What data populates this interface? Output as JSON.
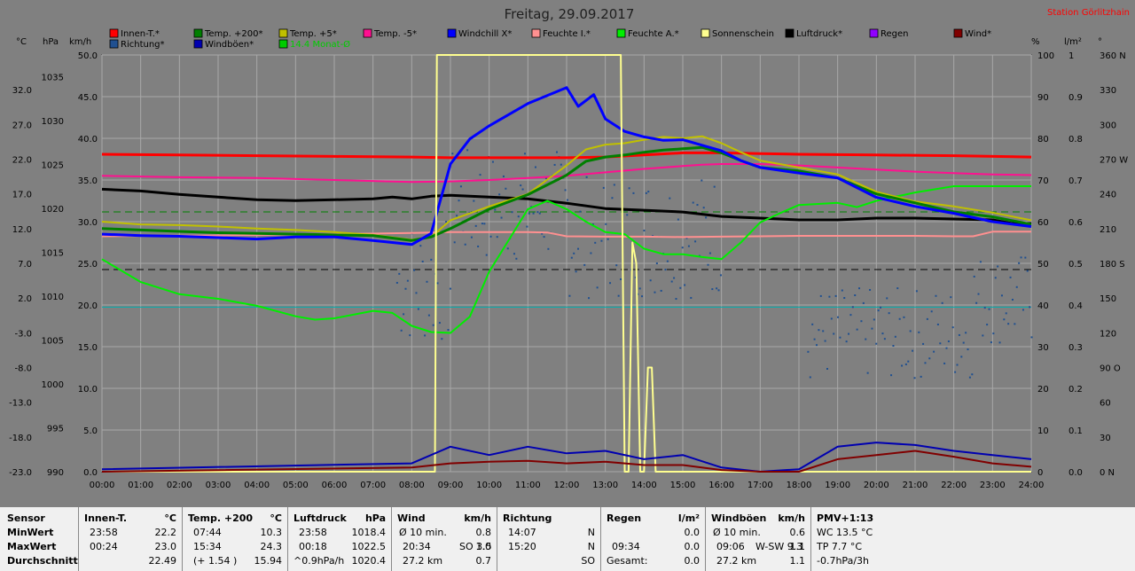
{
  "title": "Freitag, 29.09.2017",
  "station": "Station Görlitzhain",
  "legend": [
    {
      "label": "Innen-T.*",
      "color": "#ff0000"
    },
    {
      "label": "Temp. +200*",
      "color": "#007f00"
    },
    {
      "label": "Temp. +5*",
      "color": "#c0c000"
    },
    {
      "label": "Temp. -5*",
      "color": "#ff1090"
    },
    {
      "label": "Windchill X*",
      "color": "#0000ff"
    },
    {
      "label": "Feuchte I.*",
      "color": "#ff9090"
    },
    {
      "label": "Feuchte A.*",
      "color": "#00ee00"
    },
    {
      "label": "Sonnenschein",
      "color": "#ffff90"
    },
    {
      "label": "Luftdruck*",
      "color": "#000000"
    },
    {
      "label": "Regen",
      "color": "#9000ff"
    },
    {
      "label": "Wind*",
      "color": "#800000"
    },
    {
      "label": "Richtung*",
      "color": "#205090"
    },
    {
      "label": "Windböen*",
      "color": "#0000b0"
    },
    {
      "label": "14.4 Monat-Ø",
      "color": "#00cc00"
    }
  ],
  "axis_units": {
    "temp": "°C",
    "pressure": "hPa",
    "wind": "km/h",
    "humidity": "%",
    "rain": "l/m²",
    "direction": "°"
  },
  "chart_data": {
    "type": "line",
    "x_ticks": [
      "00:00",
      "01:00",
      "02:00",
      "03:00",
      "04:00",
      "05:00",
      "06:00",
      "07:00",
      "08:00",
      "09:00",
      "10:00",
      "11:00",
      "12:00",
      "13:00",
      "14:00",
      "15:00",
      "16:00",
      "17:00",
      "18:00",
      "19:00",
      "20:00",
      "21:00",
      "22:00",
      "23:00",
      "24:00"
    ],
    "xlim": [
      0,
      24
    ],
    "axes": {
      "temp": {
        "ticks": [
          "32.0",
          "27.0",
          "22.0",
          "17.0",
          "12.0",
          "7.0",
          "2.0",
          "-3.0",
          "-8.0",
          "-13.0",
          "-18.0",
          "-23.0"
        ],
        "range": [
          -23,
          37
        ]
      },
      "pressure": {
        "ticks": [
          "1035",
          "1030",
          "1025",
          "1020",
          "1015",
          "1010",
          "1005",
          "1000",
          "995",
          "990"
        ],
        "range": [
          990,
          1037.5
        ]
      },
      "wind": {
        "ticks": [
          "50.0",
          "45.0",
          "40.0",
          "35.0",
          "30.0",
          "25.0",
          "20.0",
          "15.0",
          "10.0",
          "5.0",
          "0.0"
        ],
        "range": [
          0,
          50
        ]
      },
      "humidity": {
        "ticks": [
          "100",
          "90",
          "80",
          "70",
          "60",
          "50",
          "40",
          "30",
          "20",
          "10",
          "0"
        ],
        "range": [
          0,
          100
        ]
      },
      "rain": {
        "ticks": [
          "1",
          "0.9",
          "0.8",
          "0.7",
          "0.6",
          "0.5",
          "0.4",
          "0.3",
          "0.2",
          "0.1",
          "0.0"
        ],
        "range": [
          0,
          1
        ]
      },
      "direction": {
        "ticks": [
          "360 N",
          "330",
          "300",
          "270 W",
          "240",
          "210",
          "180 S",
          "150",
          "120",
          "90 O",
          "60",
          "30",
          "0 N"
        ],
        "range": [
          0,
          360
        ]
      }
    },
    "grid": true,
    "reference_lines": [
      {
        "name": "14.4 Monat-Ø",
        "axis": "temp",
        "y": 14.4,
        "color": "#008000",
        "style": "dashed"
      },
      {
        "axis": "humidity",
        "y": 48.5,
        "color": "#000000",
        "style": "dashed"
      },
      {
        "axis": "humidity",
        "y": 39.5,
        "color": "#00b0b0",
        "style": "solid"
      }
    ],
    "series": [
      {
        "name": "Innen-T.*",
        "axis": "temp",
        "color": "#ff0000",
        "width": 3,
        "x": [
          0,
          2,
          4,
          6,
          8,
          9,
          10,
          12,
          13,
          14,
          15,
          16,
          17,
          18,
          20,
          22,
          24
        ],
        "y": [
          22.7,
          22.6,
          22.5,
          22.4,
          22.3,
          22.2,
          22.2,
          22.2,
          22.3,
          22.6,
          22.9,
          22.9,
          22.8,
          22.7,
          22.6,
          22.5,
          22.3
        ]
      },
      {
        "name": "Temp. -5*",
        "axis": "temp",
        "color": "#ff1090",
        "width": 2,
        "x": [
          0,
          2,
          4,
          6,
          8,
          9,
          10,
          11,
          12,
          13,
          14,
          15,
          15.5,
          16,
          17,
          18,
          19,
          20,
          21,
          22,
          23,
          24
        ],
        "y": [
          19.6,
          19.4,
          19.3,
          19.0,
          18.7,
          18.8,
          19.0,
          19.3,
          19.6,
          20.1,
          20.6,
          21.0,
          21.2,
          21.3,
          21.3,
          21.1,
          20.8,
          20.5,
          20.2,
          20.0,
          19.8,
          19.7
        ]
      },
      {
        "name": "Luftdruck*",
        "axis": "pressure",
        "color": "#000000",
        "width": 3,
        "x": [
          0,
          1,
          2,
          3,
          4,
          5,
          6,
          7,
          7.5,
          8,
          8.5,
          9,
          10,
          11,
          12,
          13,
          14,
          15,
          16,
          17,
          18,
          19,
          20,
          21,
          22,
          23,
          23.5,
          24
        ],
        "y": [
          1022.2,
          1022.0,
          1021.6,
          1021.3,
          1021.0,
          1020.9,
          1021.0,
          1021.1,
          1021.3,
          1021.1,
          1021.4,
          1021.5,
          1021.3,
          1021.1,
          1020.6,
          1020.0,
          1019.8,
          1019.6,
          1019.1,
          1018.9,
          1018.7,
          1018.7,
          1018.9,
          1018.9,
          1018.8,
          1018.7,
          1018.3,
          1018.3
        ]
      },
      {
        "name": "Feuchte I.*",
        "axis": "humidity",
        "color": "#ff9090",
        "width": 2,
        "x": [
          0,
          3,
          6,
          8,
          9,
          10,
          11,
          11.5,
          12,
          13,
          14,
          15,
          16,
          17,
          18,
          19,
          20,
          21,
          22,
          22.5,
          23,
          24
        ],
        "y": [
          56.5,
          56.7,
          57.0,
          57.3,
          57.5,
          57.5,
          57.5,
          57.4,
          56.5,
          56.4,
          56.4,
          56.3,
          56.4,
          56.5,
          56.6,
          56.6,
          56.6,
          56.6,
          56.5,
          56.5,
          57.6,
          57.6
        ]
      },
      {
        "name": "Feuchte A.*",
        "axis": "humidity",
        "color": "#00ee00",
        "width": 2,
        "x": [
          0,
          1,
          2,
          3,
          4,
          5,
          5.5,
          6,
          7,
          7.5,
          8,
          8.5,
          9,
          9.5,
          10,
          11,
          11.5,
          12,
          12.5,
          13,
          13.5,
          14,
          14.5,
          15,
          15.5,
          16,
          16.5,
          17,
          17.5,
          18,
          19,
          19.5,
          20,
          21,
          22,
          23,
          24
        ],
        "y": [
          51,
          45.5,
          42.6,
          41.5,
          39.8,
          37.3,
          36.5,
          36.8,
          38.6,
          38.1,
          35,
          33.5,
          33.3,
          37.2,
          48,
          63,
          65,
          63,
          60,
          57.5,
          57,
          53.5,
          52.2,
          52.2,
          51.5,
          51,
          55,
          59.8,
          62,
          64,
          64.5,
          63.5,
          65,
          67,
          68.5,
          68.5,
          68.5
        ]
      },
      {
        "name": "Temp. +5*",
        "axis": "temp",
        "color": "#c0c000",
        "width": 2,
        "x": [
          0,
          1,
          2,
          3,
          4,
          5,
          6,
          7,
          8,
          8.5,
          9,
          10,
          11,
          12,
          12.5,
          13,
          13.5,
          14,
          14.5,
          15,
          15.5,
          16,
          16.5,
          17,
          18,
          19,
          20,
          21,
          22,
          23,
          24
        ],
        "y": [
          13.0,
          12.6,
          12.5,
          12.3,
          12.0,
          11.8,
          11.5,
          11.1,
          10.4,
          10.8,
          13.2,
          15.2,
          17.0,
          21.1,
          23.4,
          24.1,
          24.3,
          24.8,
          25.2,
          25.0,
          25.3,
          24.3,
          23.0,
          21.8,
          20.8,
          19.8,
          17.3,
          15.9,
          15.2,
          14.3,
          13.2
        ]
      },
      {
        "name": "Temp. +200*",
        "axis": "temp",
        "color": "#007f00",
        "width": 3,
        "x": [
          0,
          1,
          2,
          3,
          4,
          5,
          6,
          7,
          8,
          8.5,
          9,
          10,
          11,
          12,
          12.5,
          13,
          13.5,
          14,
          14.5,
          15,
          15.5,
          16,
          16.5,
          17,
          18,
          19,
          20,
          21,
          22,
          23,
          24
        ],
        "y": [
          12.0,
          11.8,
          11.6,
          11.4,
          11.3,
          11.2,
          11.1,
          11.0,
          10.3,
          10.8,
          12.0,
          14.8,
          16.9,
          19.7,
          21.7,
          22.3,
          22.6,
          23.0,
          23.3,
          23.5,
          23.7,
          22.9,
          21.8,
          20.8,
          20.3,
          19.3,
          17.0,
          15.7,
          14.4,
          13.7,
          12.6
        ]
      },
      {
        "name": "Windchill X*",
        "axis": "temp",
        "color": "#0000ff",
        "width": 3,
        "x": [
          0,
          1,
          2,
          3,
          4,
          5,
          6,
          7,
          8,
          8.5,
          9,
          9.5,
          10,
          11,
          12,
          12.3,
          12.7,
          13,
          13.5,
          14,
          14.5,
          15,
          15.5,
          16,
          16.5,
          17,
          18,
          19,
          20,
          21,
          22,
          23,
          24
        ],
        "y": [
          11.2,
          11.0,
          10.9,
          10.7,
          10.5,
          10.8,
          10.8,
          10.3,
          9.7,
          11.3,
          21.3,
          24.9,
          26.8,
          30.0,
          32.3,
          29.6,
          31.3,
          27.8,
          26.0,
          25.2,
          24.7,
          24.8,
          24.0,
          23.2,
          21.8,
          20.8,
          20.0,
          19.3,
          16.5,
          15.2,
          14.2,
          13.0,
          12.3
        ]
      },
      {
        "name": "Sonnenschein",
        "axis": "humidity",
        "color": "#ffff90",
        "width": 2,
        "x": [
          0,
          8.6,
          8.65,
          8.7,
          13.3,
          13.4,
          13.5,
          13.6,
          13.7,
          13.8,
          13.9,
          14.0,
          14.1,
          14.2,
          14.3,
          14.4,
          14.5,
          14.6,
          14.7,
          14.8,
          24
        ],
        "y": [
          0,
          0,
          100,
          100,
          100,
          100,
          0,
          0,
          55,
          50,
          0,
          0,
          25,
          25,
          0,
          0,
          0,
          0,
          0,
          0,
          0
        ]
      },
      {
        "name": "Windböen*",
        "axis": "wind",
        "color": "#0000b0",
        "width": 2,
        "x": [
          0,
          8,
          9,
          10,
          11,
          12,
          13,
          14,
          15,
          16,
          17,
          18,
          19,
          20,
          21,
          22,
          23,
          24
        ],
        "y": [
          0.3,
          1,
          3,
          2,
          3,
          2.2,
          2.5,
          1.5,
          2,
          0.5,
          0,
          0.3,
          3,
          3.5,
          3.2,
          2.5,
          2,
          1.5
        ]
      },
      {
        "name": "Wind*",
        "axis": "wind",
        "color": "#800000",
        "width": 2,
        "x": [
          0,
          8,
          9,
          10,
          11,
          12,
          13,
          14,
          15,
          16,
          17,
          18,
          19,
          20,
          21,
          22,
          23,
          24
        ],
        "y": [
          0,
          0.5,
          1,
          1.2,
          1.3,
          1,
          1.2,
          0.8,
          0.8,
          0.2,
          0,
          0,
          1.5,
          2,
          2.5,
          1.8,
          1,
          0.6
        ]
      }
    ]
  },
  "table": {
    "sensor": {
      "header": "Sensor",
      "min": "MinWert",
      "max": "MaxWert",
      "avg": "Durchschnitt"
    },
    "innen": {
      "header": "Innen-T.",
      "unit": "°C",
      "min_time": "23:58",
      "min": "22.2",
      "max_time": "00:24",
      "max": "23.0",
      "avg": "22.49"
    },
    "temp": {
      "header": "Temp. +200",
      "unit": "°C",
      "min_time": "07:44",
      "min": "10.3",
      "max_time": "15:34",
      "max": "24.3",
      "avg_note": "(+ 1.54 )",
      "avg": "15.94"
    },
    "druck": {
      "header": "Luftdruck",
      "unit": "hPa",
      "min_time": "23:58",
      "min": "1018.4",
      "max_time": "00:18",
      "max": "1022.5",
      "avg_note": "^0.9hPa/h",
      "avg": "1020.4"
    },
    "wind": {
      "header": "Wind",
      "unit": "km/h",
      "min_note": "Ø 10 min.",
      "min": "0.8",
      "max_time": "20:34",
      "max_note": "SO 3.5",
      "max": "1.0",
      "avg_note": "27.2 km",
      "avg": "0.7"
    },
    "richtung": {
      "header": "Richtung",
      "min_time": "14:07",
      "min": "N",
      "max_time": "15:20",
      "max": "N",
      "avg": "SO"
    },
    "regen": {
      "header": "Regen",
      "unit": "l/m²",
      "min": "0.0",
      "max_time": "09:34",
      "max": "0.0",
      "avg_note": "Gesamt:",
      "avg": "0.0"
    },
    "boeen": {
      "header": "Windböen",
      "unit": "km/h",
      "min_note": "Ø 10 min.",
      "min": "0.6",
      "max_time": "09:06",
      "max_note": "W-SW 9.3",
      "max": "1.1",
      "avg_note": "27.2 km",
      "avg": "1.1"
    },
    "pmv": {
      "header": "PMV+1:13",
      "min": "WC 13.5 °C",
      "max": "TP 7.7 °C",
      "avg": "-0.7hPa/3h"
    }
  }
}
